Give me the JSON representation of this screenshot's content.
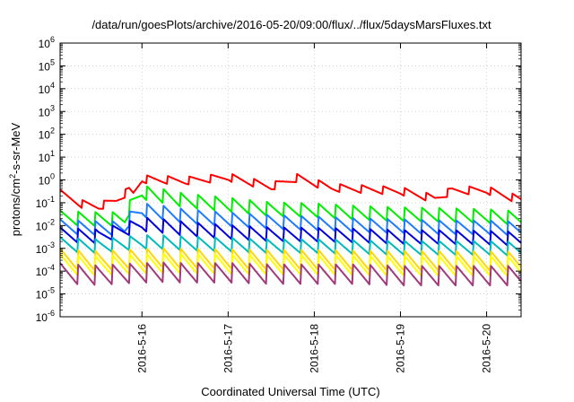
{
  "chart_data": {
    "type": "line",
    "title": "/data/run/goesPlots/archive/2016-05-20/09:00/flux/../flux/5daysMarsFluxes.txt",
    "xlabel": "Coordinated Universal Time (UTC)",
    "ylabel": {
      "pre": "protons/cm",
      "sup": "2",
      "post": "-s-sr-MeV"
    },
    "yscale": "log",
    "ylim_exponents": [
      -6,
      6
    ],
    "ytick_labels": [
      {
        "base": "10",
        "exp": "-6"
      },
      {
        "base": "10",
        "exp": "-5"
      },
      {
        "base": "10",
        "exp": "-4"
      },
      {
        "base": "10",
        "exp": "-3"
      },
      {
        "base": "10",
        "exp": "-2"
      },
      {
        "base": "10",
        "exp": "-1"
      },
      {
        "base": "10",
        "exp": "0"
      },
      {
        "base": "10",
        "exp": "1"
      },
      {
        "base": "10",
        "exp": "2"
      },
      {
        "base": "10",
        "exp": "3"
      },
      {
        "base": "10",
        "exp": "4"
      },
      {
        "base": "10",
        "exp": "5"
      },
      {
        "base": "10",
        "exp": "6"
      }
    ],
    "xrange_days": [
      15.05,
      20.4
    ],
    "xtick_labels": [
      "2016-5-16",
      "2016-5-17",
      "2016-5-18",
      "2016-5-19",
      "2016-5-20"
    ],
    "xtick_days": [
      16,
      17,
      18,
      19,
      20
    ],
    "grid": true,
    "series": [
      {
        "color": "#ff0000",
        "x": [
          15.05,
          15.3,
          15.5,
          15.7,
          15.85,
          15.9,
          16.0,
          16.5,
          17.0,
          17.5,
          17.7,
          17.8,
          18.2,
          18.5,
          19.0,
          19.4,
          19.6,
          20.0,
          20.4
        ],
        "y": [
          0.25,
          0.09,
          0.07,
          0.13,
          0.35,
          0.25,
          1.1,
          0.9,
          1.3,
          0.5,
          0.9,
          1.2,
          0.45,
          0.4,
          0.32,
          0.15,
          0.33,
          0.35,
          0.13
        ]
      },
      {
        "color": "#00ee00",
        "x": [
          15.05,
          15.5,
          15.8,
          15.85,
          16.0,
          16.5,
          17.0,
          17.5,
          18.0,
          18.5,
          19.0,
          19.5,
          20.0,
          20.4
        ],
        "y": [
          0.022,
          0.02,
          0.02,
          0.06,
          0.3,
          0.12,
          0.08,
          0.05,
          0.045,
          0.035,
          0.03,
          0.028,
          0.025,
          0.02
        ]
      },
      {
        "color": "#1e7bff",
        "x": [
          15.05,
          15.5,
          15.8,
          15.85,
          16.0,
          16.5,
          17.0,
          17.5,
          18.0,
          18.5,
          19.0,
          19.5,
          20.0,
          20.4
        ],
        "y": [
          0.009,
          0.008,
          0.008,
          0.02,
          0.05,
          0.025,
          0.018,
          0.014,
          0.012,
          0.01,
          0.009,
          0.008,
          0.008,
          0.007
        ]
      },
      {
        "color": "#0000dd",
        "x": [
          15.05,
          15.5,
          15.85,
          16.0,
          16.5,
          17.0,
          17.5,
          18.0,
          18.5,
          19.0,
          19.5,
          20.0,
          20.4
        ],
        "y": [
          0.004,
          0.0035,
          0.008,
          0.012,
          0.007,
          0.005,
          0.004,
          0.0038,
          0.0035,
          0.003,
          0.003,
          0.0028,
          0.0025
        ]
      },
      {
        "color": "#00bbbb",
        "x": [
          15.05,
          15.5,
          16.0,
          16.5,
          17.0,
          17.5,
          18.0,
          18.5,
          19.0,
          19.5,
          20.0,
          20.4
        ],
        "y": [
          0.0015,
          0.0013,
          0.002,
          0.0016,
          0.0014,
          0.0012,
          0.0012,
          0.0011,
          0.001,
          0.001,
          0.001,
          0.0009
        ]
      },
      {
        "color": "#ffd700",
        "x": [
          15.05,
          15.5,
          16.0,
          16.5,
          17.0,
          17.5,
          18.0,
          18.5,
          19.0,
          19.5,
          20.0,
          20.4
        ],
        "y": [
          0.00035,
          0.0003,
          0.00038,
          0.00034,
          0.00032,
          0.0003,
          0.0003,
          0.00028,
          0.00027,
          0.00027,
          0.00026,
          0.00025
        ]
      },
      {
        "color": "#ffff00",
        "x": [
          15.05,
          15.5,
          16.0,
          16.5,
          17.0,
          17.5,
          18.0,
          18.5,
          19.0,
          19.5,
          20.0,
          20.4
        ],
        "y": [
          0.0002,
          0.00018,
          0.00022,
          0.0002,
          0.00019,
          0.00018,
          0.00018,
          0.00017,
          0.00016,
          0.00016,
          0.00016,
          0.00015
        ]
      },
      {
        "color": "#a03a7a",
        "x": [
          15.05,
          15.5,
          16.0,
          16.5,
          17.0,
          17.5,
          18.0,
          18.5,
          19.0,
          19.5,
          20.0,
          20.4
        ],
        "y": [
          8e-05,
          7e-05,
          9e-05,
          8e-05,
          8e-05,
          7e-05,
          7e-05,
          7e-05,
          6e-05,
          6e-05,
          6e-05,
          6e-05
        ]
      }
    ]
  }
}
